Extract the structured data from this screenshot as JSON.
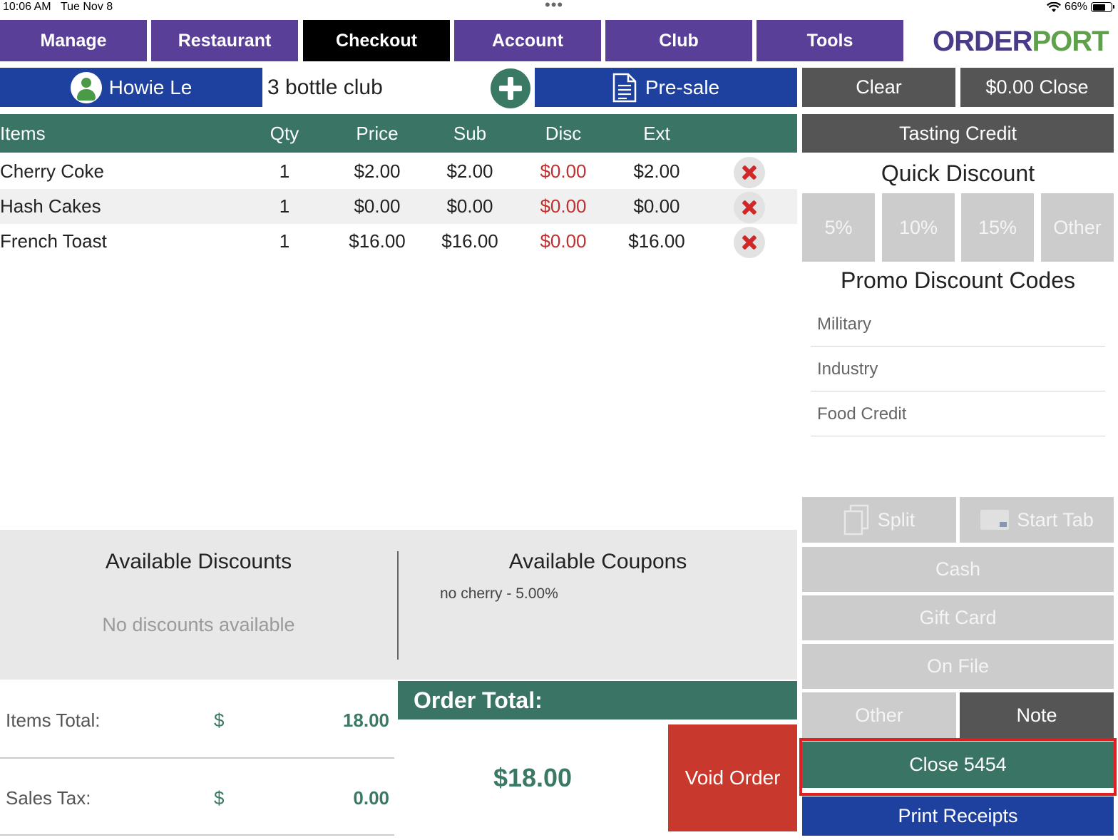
{
  "status_bar": {
    "time": "10:06 AM",
    "date": "Tue Nov 8",
    "dots": "•••",
    "battery": "66%"
  },
  "nav": {
    "tabs": [
      {
        "label": "Manage"
      },
      {
        "label": "Restaurant"
      },
      {
        "label": "Checkout"
      },
      {
        "label": "Account"
      },
      {
        "label": "Club"
      },
      {
        "label": "Tools"
      }
    ],
    "active_tab": "Checkout"
  },
  "logo": {
    "order": "ORDER",
    "port": "PORT"
  },
  "customer": {
    "name": "Howie Le",
    "club": "3 bottle club",
    "presale_label": "Pre-sale"
  },
  "table": {
    "headers": {
      "items": "Items",
      "qty": "Qty",
      "price": "Price",
      "sub": "Sub",
      "disc": "Disc",
      "ext": "Ext"
    },
    "rows": [
      {
        "item": "Cherry Coke",
        "qty": "1",
        "price": "$2.00",
        "sub": "$2.00",
        "disc": "$0.00",
        "ext": "$2.00"
      },
      {
        "item": "Hash Cakes",
        "qty": "1",
        "price": "$0.00",
        "sub": "$0.00",
        "disc": "$0.00",
        "ext": "$0.00"
      },
      {
        "item": "French Toast",
        "qty": "1",
        "price": "$16.00",
        "sub": "$16.00",
        "disc": "$0.00",
        "ext": "$16.00"
      }
    ]
  },
  "discounts": {
    "available_discounts_title": "Available Discounts",
    "no_discounts": "No discounts available",
    "available_coupons_title": "Available Coupons",
    "coupons": [
      "no cherry - 5.00%"
    ]
  },
  "totals": {
    "items_total_label": "Items Total:",
    "items_total_value": "18.00",
    "sales_tax_label": "Sales Tax:",
    "sales_tax_value": "0.00",
    "currency": "$",
    "order_total_label": "Order Total:",
    "order_total_value": "$18.00",
    "void_label": "Void Order"
  },
  "right_panel": {
    "clear_label": "Clear",
    "close_zero_label": "$0.00 Close",
    "tasting_credit_label": "Tasting Credit",
    "quick_discount_title": "Quick Discount",
    "quick_discounts": [
      "5%",
      "10%",
      "15%",
      "Other"
    ],
    "promo_title": "Promo Discount Codes",
    "promo_codes": [
      "Military",
      "Industry",
      "Food Credit"
    ],
    "split_label": "Split",
    "start_tab_label": "Start Tab",
    "cash_label": "Cash",
    "gift_card_label": "Gift Card",
    "on_file_label": "On File",
    "other_label": "Other",
    "note_label": "Note",
    "close_order_label": "Close 5454",
    "print_receipts_label": "Print Receipts"
  },
  "colors": {
    "nav_purple": "#5a3f98",
    "nav_active": "#000000",
    "brand_green": "#3a7464",
    "action_blue": "#1e41a0",
    "void_red": "#c8382c",
    "highlight_red": "#e02020"
  }
}
